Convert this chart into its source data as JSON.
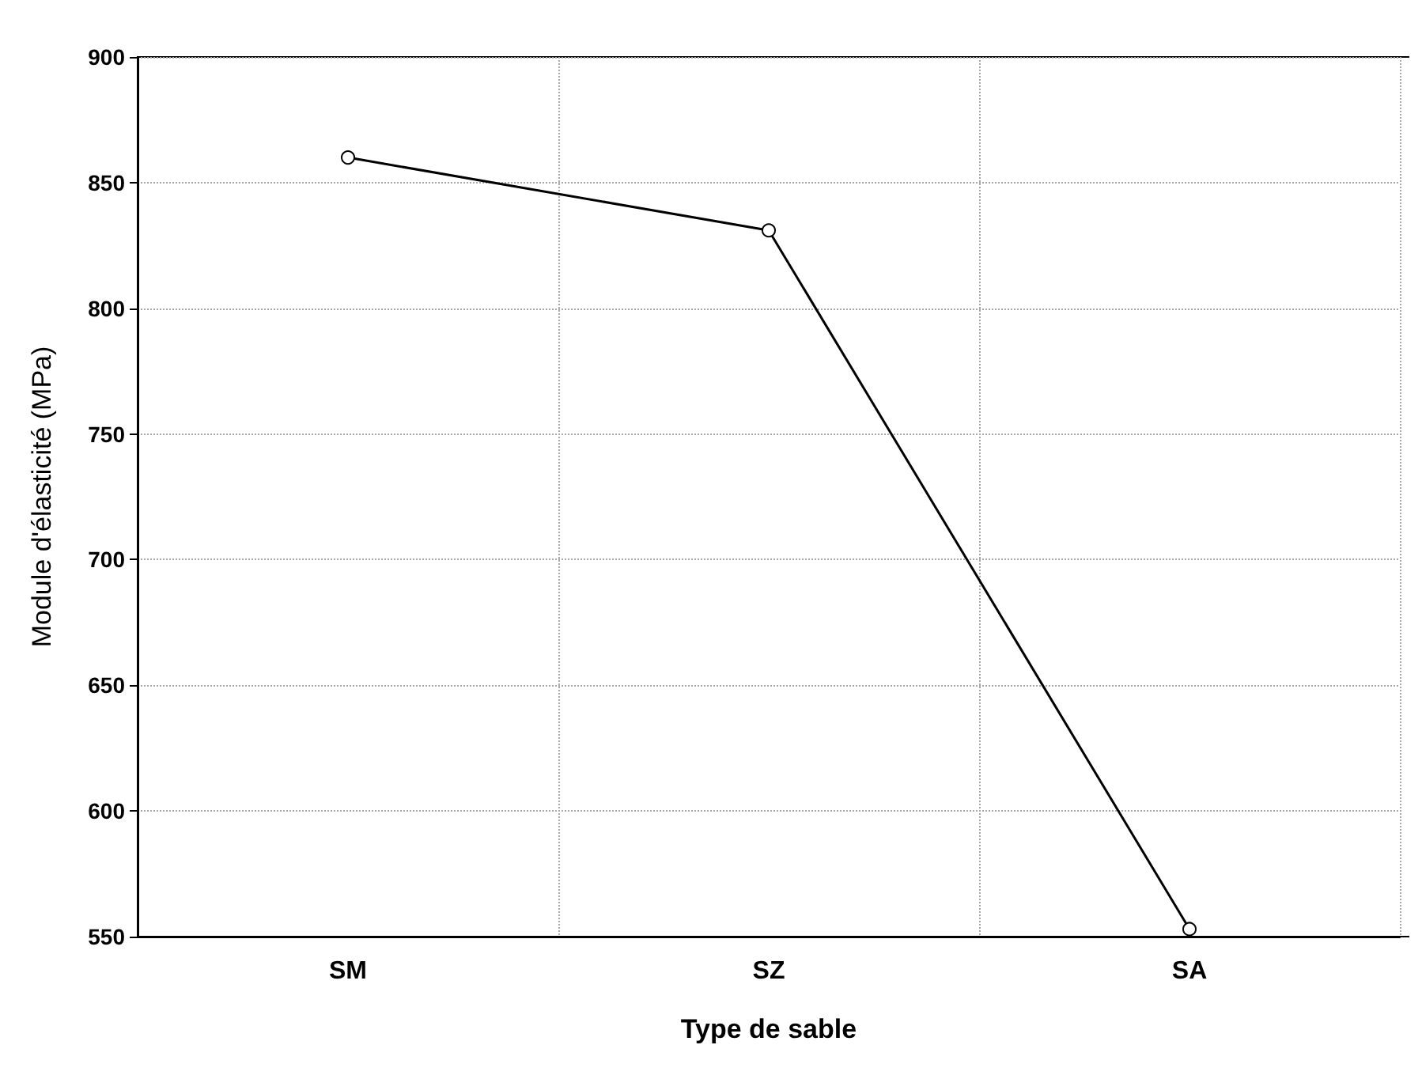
{
  "chart_data": {
    "type": "line",
    "xlabel": "Type de sable",
    "ylabel": "Module d'élasticité (MPa)",
    "categories": [
      "SM",
      "SZ",
      "SA"
    ],
    "series": [
      {
        "color": "#000000",
        "values": [
          860,
          831,
          553
        ]
      }
    ],
    "ylim": [
      550,
      900
    ],
    "yticks": [
      550,
      600,
      650,
      700,
      750,
      800,
      850,
      900
    ],
    "grid": true,
    "marker": "circle",
    "line_style": "solid"
  }
}
